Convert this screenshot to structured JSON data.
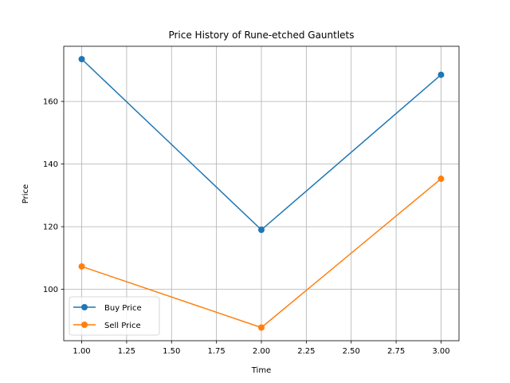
{
  "chart_data": {
    "type": "line",
    "title": "Price History of Rune-etched Gauntlets",
    "xlabel": "Time",
    "ylabel": "Price",
    "x": [
      1.0,
      2.0,
      3.0
    ],
    "xlim": [
      0.9,
      3.1
    ],
    "ylim": [
      83.6,
      177.6
    ],
    "xticks": [
      "1.00",
      "1.25",
      "1.50",
      "1.75",
      "2.00",
      "2.25",
      "2.50",
      "2.75",
      "3.00"
    ],
    "yticks": [
      "100",
      "120",
      "140",
      "160"
    ],
    "grid": true,
    "legend_position": "lower-left",
    "series": [
      {
        "name": "Buy Price",
        "color": "#1f77b4",
        "values": [
          173.5,
          119.0,
          168.5
        ]
      },
      {
        "name": "Sell Price",
        "color": "#ff7f0e",
        "values": [
          107.3,
          87.8,
          135.3
        ]
      }
    ]
  }
}
